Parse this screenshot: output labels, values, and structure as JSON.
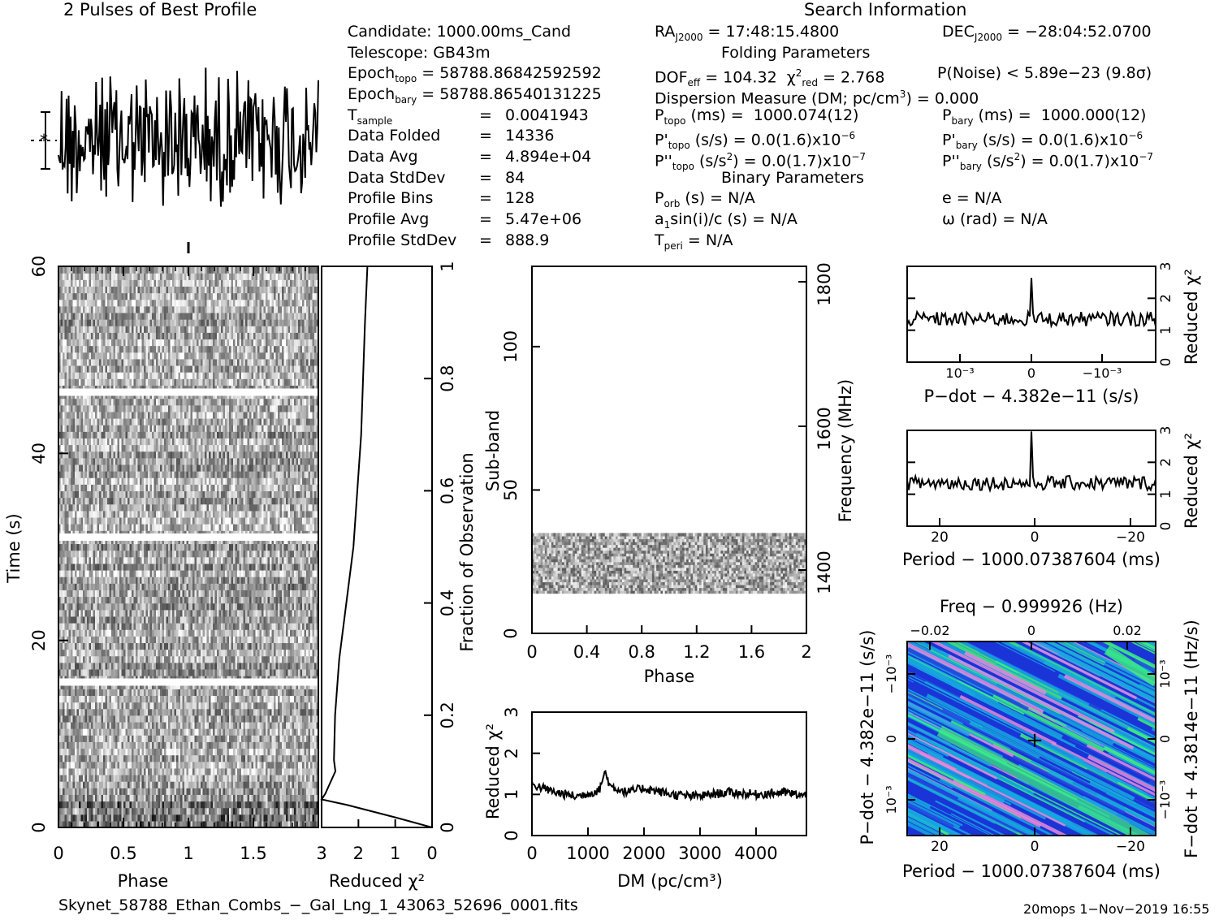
{
  "header": {
    "profile_title": "2 Pulses of Best Profile",
    "search_title": "Search Information"
  },
  "info": {
    "candidate": "Candidate:  1000.00ms_Cand",
    "telescope": "Telescope:  GB43m",
    "epoch_topo": "58788.86842592592",
    "epoch_bary": "58788.86540131225",
    "t_sample": "0.0041943",
    "data_folded": "14336",
    "data_avg": "4.894e+04",
    "data_stddev": "84",
    "profile_bins": "128",
    "profile_avg": "5.47e+06",
    "profile_stddev": "888.9",
    "ra": "17:48:15.4800",
    "dec": "−28:04:52.0700",
    "folding_title": "Folding Parameters",
    "dof_eff": "104.32",
    "chi2_red": "2.768",
    "p_noise": "P(Noise) < 5.89e−23  (9.8σ)",
    "dm": "0.000",
    "p_topo": "1000.074(12)",
    "p_bary": "1000.000(12)",
    "pd_topo": "0.0(1.6)x10",
    "pd_topo_exp": "−6",
    "pd_bary": "0.0(1.6)x10",
    "pd_bary_exp": "−6",
    "pdd_topo": "0.0(1.7)x10",
    "pdd_topo_exp": "−7",
    "pdd_bary": "0.0(1.7)x10",
    "pdd_bary_exp": "−7",
    "binary_title": "Binary Parameters",
    "p_orb": "N/A",
    "a1sini": "N/A",
    "t_peri": "N/A",
    "ecc": "N/A",
    "omega": "N/A"
  },
  "footer": {
    "filename": "Skynet_58788_Ethan_Combs_−_Gal_Lng_1_43063_52696_0001.fits",
    "stamp": "20mops  1−Nov−2019 16:55"
  },
  "chart_data": [
    {
      "type": "line",
      "name": "profile",
      "title": "2 Pulses of Best Profile",
      "x_range": [
        0,
        2
      ],
      "bins": 128,
      "description_values": "noise-like profile, no significant pulse"
    },
    {
      "type": "heatmap",
      "name": "time-phase",
      "xlabel": "Phase",
      "ylabel": "Time (s)",
      "xlim": [
        0,
        2
      ],
      "ylim": [
        0,
        60
      ],
      "x_ticks": [
        "0",
        "0.5",
        "1",
        "1.5"
      ],
      "y_ticks": [
        "0",
        "20",
        "40",
        "60"
      ],
      "gaps_time_s": [
        15.5,
        31.0,
        46.5
      ]
    },
    {
      "type": "line",
      "name": "time-chi2",
      "xlabel": "Reduced χ²",
      "right_axis_label": "Fraction of Observation",
      "xlim": [
        3,
        0
      ],
      "x_ticks": [
        "3",
        "2",
        "1",
        "0"
      ],
      "right_ticks": [
        "0",
        "0.2",
        "0.4",
        "0.6",
        "0.8",
        "1"
      ],
      "points": [
        [
          0.0,
          0.0
        ],
        [
          1.0,
          0.018
        ],
        [
          2.3,
          0.04
        ],
        [
          3.0,
          0.05
        ],
        [
          2.9,
          0.06
        ],
        [
          2.55,
          0.1
        ],
        [
          2.7,
          0.12
        ],
        [
          2.65,
          0.2
        ],
        [
          2.45,
          0.3
        ],
        [
          2.2,
          0.5
        ],
        [
          2.0,
          0.7
        ],
        [
          1.8,
          0.9
        ],
        [
          1.7,
          1.0
        ]
      ]
    },
    {
      "type": "heatmap",
      "name": "subband-phase",
      "xlabel": "Phase",
      "ylabel": "Sub-band",
      "right_axis_label": "Frequency (MHz)",
      "xlim": [
        0,
        2
      ],
      "ylim": [
        0,
        128
      ],
      "x_ticks": [
        "0",
        "0.4",
        "0.8",
        "1.2",
        "1.6",
        "2"
      ],
      "y_ticks": [
        "0",
        "50",
        "100"
      ],
      "right_ticks": [
        "1400",
        "1600",
        "1800"
      ],
      "filled_subbands": [
        14,
        35
      ]
    },
    {
      "type": "line",
      "name": "dm-chi2",
      "xlabel": "DM (pc/cm³)",
      "ylabel": "Reduced χ²",
      "xlim": [
        0,
        4900
      ],
      "ylim": [
        0,
        3
      ],
      "x_ticks": [
        "0",
        "1000",
        "2000",
        "3000",
        "4000"
      ],
      "y_ticks": [
        "0",
        "1",
        "2",
        "3"
      ],
      "points": [
        [
          0,
          1.25
        ],
        [
          400,
          1.05
        ],
        [
          800,
          0.95
        ],
        [
          1200,
          1.1
        ],
        [
          1300,
          1.55
        ],
        [
          1400,
          1.2
        ],
        [
          1700,
          1.05
        ],
        [
          2000,
          1.15
        ],
        [
          2500,
          1.0
        ],
        [
          2900,
          0.95
        ],
        [
          3500,
          1.05
        ],
        [
          4000,
          1.0
        ],
        [
          4500,
          1.05
        ],
        [
          4900,
          0.95
        ]
      ]
    },
    {
      "type": "line",
      "name": "pdot-chi2",
      "xlabel": "P−dot − 4.382e−11 (s/s)",
      "ylabel": "Reduced χ²",
      "ylim": [
        0,
        3
      ],
      "x_ticks": [
        "10⁻³",
        "0",
        "−10⁻³"
      ],
      "y_ticks": [
        "0",
        "1",
        "2",
        "3"
      ],
      "peak": {
        "x": 0,
        "y": 2.8
      }
    },
    {
      "type": "line",
      "name": "period-chi2",
      "xlabel": "Period − 1000.07387604 (ms)",
      "ylabel": "Reduced χ²",
      "xlim": [
        25,
        -25
      ],
      "ylim": [
        0,
        3
      ],
      "x_ticks": [
        "20",
        "0",
        "−20"
      ],
      "y_ticks": [
        "0",
        "1",
        "2",
        "3"
      ],
      "peak": {
        "x": 0,
        "y": 2.8
      }
    },
    {
      "type": "heatmap",
      "name": "period-pdot",
      "xlabel": "Period − 1000.07387604 (ms)",
      "ylabel": "P−dot − 4.382e−11 (s/s)",
      "top_label": "Freq − 0.999926 (Hz)",
      "right_label": "F−dot + 4.3814e−11 (Hz/s)",
      "x_ticks": [
        "20",
        "0",
        "−20"
      ],
      "top_ticks": [
        "−0.02",
        "0",
        "0.02"
      ],
      "y_ticks": [
        "−10⁻³",
        "0",
        "10⁻³"
      ],
      "right_ticks": [
        "10⁻³",
        "0",
        "−10⁻³"
      ],
      "colors": {
        "low": "#1a34d8",
        "mid": "#16a7e0",
        "high": "#3ef27a",
        "peak": "#e58ad9"
      }
    }
  ]
}
